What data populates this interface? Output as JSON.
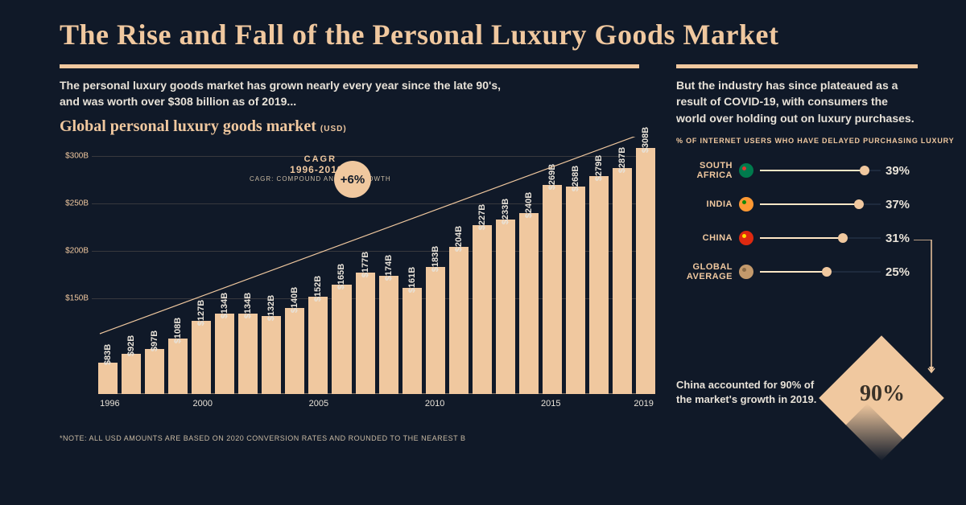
{
  "title": "The Rise and Fall of the  Personal Luxury Goods Market",
  "intro_left": "The personal luxury goods market has grown nearly every year since the late 90's, and was worth over $308 billion as of 2019...",
  "chart": {
    "title": "Global personal luxury goods market",
    "unit": "(USD)",
    "type": "bar",
    "bar_color": "#f0c89f",
    "background_color": "#101928",
    "grid_color": "rgba(240,200,159,0.18)",
    "y_ticks": [
      "$150B",
      "$200B",
      "$250B",
      "$300B"
    ],
    "y_values": [
      150,
      200,
      250,
      300
    ],
    "y_min": 50,
    "y_max": 320,
    "years": [
      1996,
      1997,
      1998,
      1999,
      2000,
      2001,
      2002,
      2003,
      2004,
      2005,
      2006,
      2007,
      2008,
      2009,
      2010,
      2011,
      2012,
      2013,
      2014,
      2015,
      2016,
      2017,
      2018,
      2019
    ],
    "values": [
      83,
      92,
      97,
      108,
      127,
      134,
      134,
      132,
      140,
      152,
      165,
      177,
      174,
      161,
      183,
      204,
      227,
      233,
      240,
      269,
      268,
      279,
      287,
      308
    ],
    "labels": [
      "$83B",
      "$92B",
      "$97B",
      "$108B",
      "$127B",
      "$134B",
      "$134B",
      "$132B",
      "$140B",
      "$152B",
      "$165B",
      "$177B",
      "$174B",
      "$161B",
      "$183B",
      "$204B",
      "$227B",
      "$233B",
      "$240B",
      "$269B",
      "$268B",
      "$279B",
      "$287B",
      "$308B"
    ],
    "x_ticks": [
      {
        "year": 1996,
        "label": "1996"
      },
      {
        "year": 2000,
        "label": "2000"
      },
      {
        "year": 2005,
        "label": "2005"
      },
      {
        "year": 2010,
        "label": "2010"
      },
      {
        "year": 2015,
        "label": "2015"
      },
      {
        "year": 2019,
        "label": "2019"
      }
    ],
    "cagr": {
      "line1": "CAGR",
      "line2": "1996-2019E",
      "line3": "CAGR: COMPOUND ANNUAL GROWTH",
      "value": "+6%",
      "circle_bg": "#f0c89f",
      "circle_fg": "#101928"
    },
    "footnote": "*NOTE: ALL USD AMOUNTS ARE BASED ON 2020 CONVERSION RATES AND ROUNDED TO THE NEAREST B"
  },
  "intro_right": "But the industry has since plateaued as a result of COVID-19, with consumers the world over holding out on luxury purchases.",
  "delay": {
    "heading": "% OF INTERNET USERS WHO HAVE DELAYED PURCHASING LUXURY",
    "max_pct": 45,
    "track_bg": "#1e2a3d",
    "fill_color": "#ffe7c6",
    "knob_color": "#f0c89f",
    "rows": [
      {
        "label": "SOUTH AFRICA",
        "pct": 39,
        "pct_label": "39%",
        "flag_bg": "#007a4d",
        "flag_accent": "#de3831"
      },
      {
        "label": "INDIA",
        "pct": 37,
        "pct_label": "37%",
        "flag_bg": "#ff9933",
        "flag_accent": "#138808"
      },
      {
        "label": "CHINA",
        "pct": 31,
        "pct_label": "31%",
        "flag_bg": "#de2910",
        "flag_accent": "#ffde00"
      },
      {
        "label": "GLOBAL AVERAGE",
        "pct": 25,
        "pct_label": "25%",
        "flag_bg": "#c49a6c",
        "flag_accent": "#8b6b47"
      }
    ]
  },
  "china_callout": {
    "text": "China accounted for 90% of the market's growth in 2019.",
    "big_value": "90%",
    "diamond_color": "#f0c89f",
    "text_color": "#3a3228"
  },
  "colors": {
    "bg": "#101928",
    "accent": "#f0c89f",
    "text_light": "#e8e2d8",
    "text_muted": "#c9baa3"
  }
}
